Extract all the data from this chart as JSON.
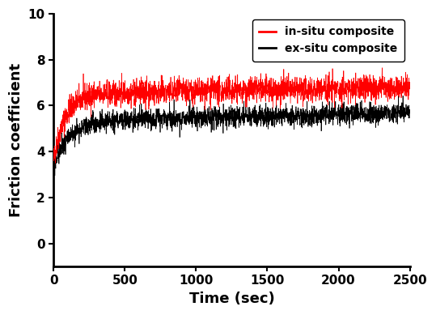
{
  "xlabel": "Time (sec)",
  "ylabel": "Friction coefficient",
  "xlim": [
    0,
    2500
  ],
  "ylim": [
    -1,
    10
  ],
  "xticks": [
    0,
    500,
    1000,
    1500,
    2000,
    2500
  ],
  "yticks": [
    0,
    2,
    4,
    6,
    8,
    10
  ],
  "in_situ_color": "#ff0000",
  "ex_situ_color": "#000000",
  "in_situ_label": "in-situ composite",
  "ex_situ_label": "ex-situ composite",
  "legend_loc": "upper right",
  "n_points": 2500,
  "background_color": "#ffffff",
  "xlabel_fontsize": 13,
  "ylabel_fontsize": 13,
  "tick_fontsize": 11,
  "legend_fontsize": 10,
  "linewidth": 0.5,
  "insitu_y0": 3.6,
  "insitu_yfinal": 6.5,
  "insitu_tau": 80,
  "insitu_noise": 0.28,
  "exsitu_y0": 3.3,
  "exsitu_yfinal": 5.3,
  "exsitu_tau": 100,
  "exsitu_noise": 0.22
}
